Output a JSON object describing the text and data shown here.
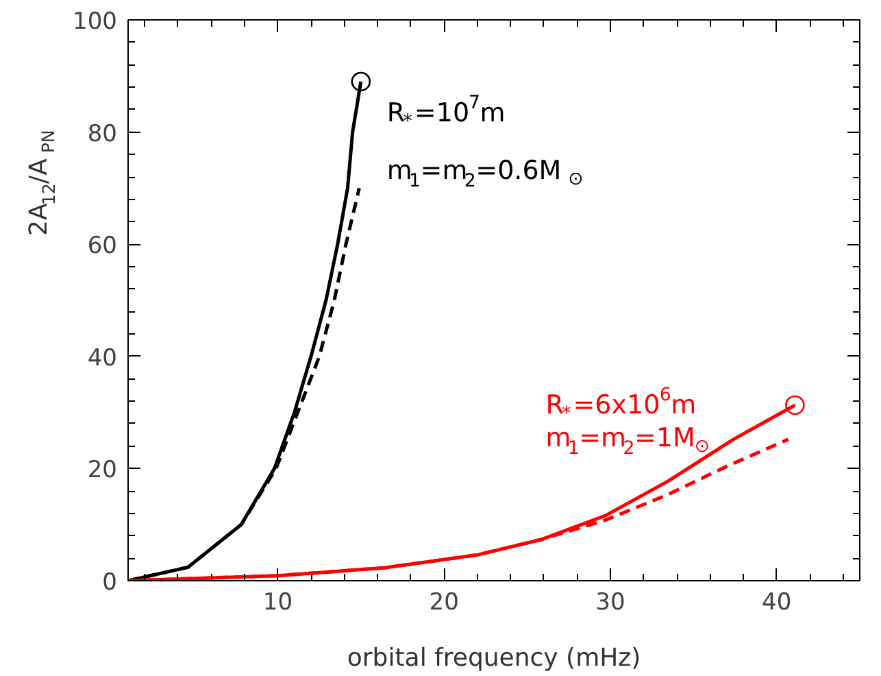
{
  "chart_data": {
    "type": "line",
    "xlabel": "orbital frequency (mHz)",
    "ylabel": "2A$_{12}$/A$_{PN}$",
    "xlim": [
      1,
      45
    ],
    "ylim": [
      0,
      100
    ],
    "xticks": [
      10,
      20,
      30,
      40
    ],
    "yticks": [
      0,
      20,
      40,
      60,
      80,
      100
    ],
    "grid": false,
    "legend": false,
    "series": [
      {
        "color": "#000000",
        "line_style": "solid",
        "x": [
          1,
          4.6,
          7.8,
          9.8,
          11.0,
          12.0,
          12.9,
          13.6,
          14.2,
          14.5,
          15.0
        ],
        "values": [
          0,
          2.4,
          10,
          20,
          30,
          40,
          50,
          60,
          70,
          80,
          89
        ]
      },
      {
        "color": "#000000",
        "line_style": "dashed",
        "x": [
          1,
          4.6,
          7.8,
          9.9,
          11.2,
          12.5,
          13.4,
          14.1,
          14.9
        ],
        "values": [
          0,
          2.4,
          10,
          20,
          30,
          40,
          50,
          60,
          70
        ]
      },
      {
        "color": "#ff0000",
        "line_style": "solid",
        "x": [
          1,
          10,
          16.4,
          22.0,
          25.8,
          29.7,
          33.5,
          37.4,
          41.1
        ],
        "values": [
          0,
          0.9,
          2.3,
          4.6,
          7.3,
          11.6,
          17.8,
          25.2,
          31.3
        ]
      },
      {
        "color": "#ff0000",
        "line_style": "dashed",
        "x": [
          1,
          10,
          16.4,
          22.0,
          25.8,
          29.7,
          33.5,
          37.0,
          40.7
        ],
        "values": [
          0,
          0.9,
          2.3,
          4.6,
          7.3,
          10.8,
          15.4,
          20.4,
          25.2
        ]
      },
      {
        "type": "scatter",
        "marker": "circle",
        "color": "#000000",
        "x": [
          15.0
        ],
        "values": [
          89
        ],
        "name": "R$_{*}$=10$^{7}$m\nm$_{1}$=m$_{2}$=0.6M$_{⊙}$"
      },
      {
        "type": "scatter",
        "marker": "circle",
        "color": "#ff0000",
        "x": [
          41.1
        ],
        "values": [
          31.3
        ],
        "name": "R$_{*}$=6x10$^{6}$m\nm$_{1}$=m$_{2}$=1M$_{⊙}$"
      }
    ]
  }
}
